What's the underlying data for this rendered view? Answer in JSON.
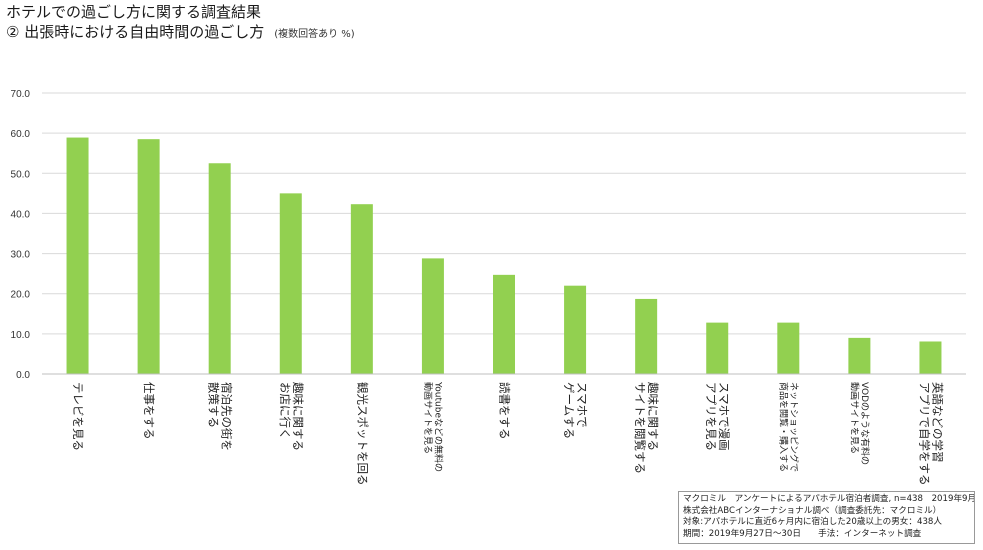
{
  "title": {
    "line1": "ホテルでの過ごし方に関する調査結果",
    "line2": "② 出張時における自由時間の過ごし方",
    "note": "(複数回答あり %)"
  },
  "chart_data": {
    "type": "bar",
    "categories": [
      [
        "テレビを見る"
      ],
      [
        "仕事をする"
      ],
      [
        "宿泊先の街を",
        "散策する"
      ],
      [
        "趣味に関する",
        "お店に行く"
      ],
      [
        "観光スポットを回る"
      ],
      [
        "Youtubeなどの無料の",
        "動画サイトを見る"
      ],
      [
        "読書をする"
      ],
      [
        "スマホで",
        "ゲームする"
      ],
      [
        "趣味に関する",
        "サイトを閲覧する"
      ],
      [
        "スマホで漫画",
        "アプリを見る"
      ],
      [
        "ネットショッピングで",
        "商品を閲覧・購入する"
      ],
      [
        "VODのような有料の",
        "動画サイトを見る"
      ],
      [
        "英語などの学習",
        "アプリで自学をする"
      ]
    ],
    "values": [
      58.9,
      58.5,
      52.5,
      45.0,
      42.3,
      28.8,
      24.7,
      22.0,
      18.7,
      12.8,
      12.8,
      9.0,
      8.1
    ],
    "ylim": [
      0,
      70
    ],
    "yticks": [
      0,
      10,
      20,
      30,
      40,
      50,
      60,
      70
    ],
    "ytick_labels": [
      "0.0",
      "10.0",
      "20.0",
      "30.0",
      "40.0",
      "50.0",
      "60.0",
      "70.0"
    ],
    "grid": true,
    "bar_color": "#92d050",
    "grid_color": "#d9d9d9"
  },
  "source_note": {
    "lines": [
      "マクロミル　アンケートによるアパホテル宿泊者調査, n=438　2019年9月",
      "株式会社ABCインターナショナル調べ（調査委託先：マクロミル）",
      "対象:アパホテルに直近6ヶ月内に宿泊した20歳以上の男女：438人",
      "期間：2019年9月27日～30日　　手法：インターネット調査"
    ]
  }
}
